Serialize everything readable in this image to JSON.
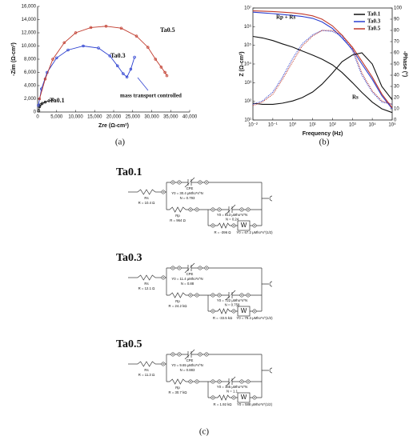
{
  "chart_data": [
    {
      "type": "line",
      "caption": "(a)",
      "xlabel": "Zre (Ω-cm²)",
      "ylabel": "-Zim (Ω-cm²)",
      "xlim": [
        0,
        40000
      ],
      "xticks": [
        0,
        {
          "value": 5000,
          "label": "5,000"
        },
        {
          "value": 10000,
          "label": "10,000"
        },
        {
          "value": 15000,
          "label": "15,000"
        },
        {
          "value": 20000,
          "label": "20,000"
        },
        {
          "value": 25000,
          "label": "25,000"
        },
        {
          "value": 30000,
          "label": "30,000"
        },
        {
          "value": 35000,
          "label": "35,000"
        },
        {
          "value": 40000,
          "label": "40,000"
        }
      ],
      "ylim": [
        0,
        16000
      ],
      "yticks": [
        0,
        {
          "value": 2000,
          "label": "2,000"
        },
        {
          "value": 4000,
          "label": "4,000"
        },
        {
          "value": 6000,
          "label": "6,000"
        },
        {
          "value": 8000,
          "label": "8,000"
        },
        {
          "value": 10000,
          "label": "10,000"
        },
        {
          "value": 12000,
          "label": "12,000"
        },
        {
          "value": 14000,
          "label": "14,000"
        },
        {
          "value": 16000,
          "label": "16,000"
        }
      ],
      "series": [
        {
          "name": "Ta0.1",
          "color": "#111111",
          "x": [
            300,
            500,
            800,
            1200,
            2000,
            3000,
            4000
          ],
          "values": [
            200,
            800,
            1100,
            1300,
            1500,
            1700,
            1900
          ]
        },
        {
          "name": "Ta0.3",
          "color": "#2b3fd0",
          "x": [
            200,
            1000,
            2500,
            5000,
            8000,
            12000,
            16000,
            19000,
            21000,
            22500,
            23500,
            24500,
            25500
          ],
          "values": [
            1000,
            3500,
            6000,
            8200,
            9400,
            10000,
            9700,
            8500,
            7000,
            5800,
            5300,
            6500,
            8300
          ]
        },
        {
          "name": "Ta0.5",
          "color": "#c0392b",
          "x": [
            500,
            2000,
            4000,
            7000,
            10000,
            14000,
            18000,
            22000,
            26000,
            29000,
            31000,
            32500,
            33500,
            34000
          ],
          "values": [
            2000,
            5000,
            8000,
            10500,
            12000,
            12800,
            13000,
            12700,
            11500,
            9800,
            8000,
            6800,
            6000,
            5500
          ]
        }
      ],
      "annotations": [
        "mass transport controlled"
      ]
    },
    {
      "type": "line",
      "caption": "(b)",
      "xlabel": "Frequency (Hz)",
      "ylabel": "Z (Ω-cm²)",
      "y2label": "-Phase (°)",
      "xscale": "log",
      "yscale": "log",
      "legend": "upper right",
      "xlim": [
        0.01,
        100000
      ],
      "xticks": [
        {
          "value": 0.01,
          "label": "10⁻²"
        },
        {
          "value": 0.1,
          "label": "10⁻¹"
        },
        {
          "value": 1,
          "label": "10⁰"
        },
        {
          "value": 10,
          "label": "10¹"
        },
        {
          "value": 100,
          "label": "10²"
        },
        {
          "value": 1000,
          "label": "10³"
        },
        {
          "value": 10000,
          "label": "10⁴"
        },
        {
          "value": 100000,
          "label": "10⁵"
        }
      ],
      "ylim": [
        10,
        10000000
      ],
      "yticks": [
        {
          "value": 10,
          "label": "10¹"
        },
        {
          "value": 100,
          "label": "10²"
        },
        {
          "value": 1000,
          "label": "10³"
        },
        {
          "value": 10000,
          "label": "10⁴"
        },
        {
          "value": 100000,
          "label": "10⁵"
        },
        {
          "value": 1000000,
          "label": "10⁶"
        },
        {
          "value": 10000000,
          "label": "10⁷"
        }
      ],
      "y2lim": [
        0,
        100
      ],
      "y2ticks": [
        0,
        10,
        20,
        30,
        40,
        50,
        60,
        70,
        80,
        90,
        100
      ],
      "x": [
        0.01,
        0.03,
        0.1,
        0.3,
        1,
        3,
        10,
        30,
        100,
        300,
        1000,
        3000,
        10000,
        30000,
        100000
      ],
      "series": [
        {
          "name": "Ta0.1",
          "color": "#111111",
          "values": [
            300000,
            250000,
            180000,
            120000,
            80000,
            50000,
            30000,
            18000,
            9000,
            3500,
            1000,
            300,
            90,
            40,
            25
          ]
        },
        {
          "name": "Ta0.3",
          "color": "#2b3fd0",
          "values": [
            6000000,
            5500000,
            5000000,
            4500000,
            4000000,
            3500000,
            2800000,
            1800000,
            800000,
            250000,
            60000,
            10000,
            1500,
            200,
            40
          ]
        },
        {
          "name": "Ta0.5",
          "color": "#c0392b",
          "values": [
            7000000,
            6800000,
            6500000,
            6000000,
            5500000,
            4800000,
            3800000,
            2500000,
            1100000,
            350000,
            80000,
            14000,
            2000,
            250,
            45
          ]
        },
        {
          "color": "#111111",
          "axis": "y2",
          "values": [
            15,
            14,
            14,
            15,
            17,
            20,
            25,
            32,
            42,
            52,
            58,
            60,
            50,
            30,
            18
          ]
        },
        {
          "color": "#2b3fd0",
          "axis": "y2",
          "dash": "dotted",
          "values": [
            14,
            17,
            25,
            38,
            55,
            68,
            76,
            80,
            79,
            75,
            62,
            40,
            25,
            16,
            14
          ]
        },
        {
          "color": "#c0392b",
          "axis": "y2",
          "dash": "dotted",
          "values": [
            13,
            16,
            23,
            36,
            52,
            66,
            75,
            80,
            80,
            76,
            64,
            42,
            26,
            17,
            14
          ]
        }
      ],
      "annotations": [
        "Rp + Rs",
        "Rs"
      ]
    }
  ],
  "caption": "(c)",
  "circuits": [
    {
      "title": "Ta0.1",
      "rs": {
        "name": "Rs",
        "value": "R = 10.4 Ω"
      },
      "cpe1": {
        "name": "CPE",
        "y0": "Y0 = 30.4 μMho*s^N",
        "n": "N = 0.793"
      },
      "rp": {
        "name": "Rp",
        "value": "R = 964 Ω"
      },
      "cpe2": {
        "y0": "Y0 = 513 μMho*s^N",
        "n": "N = 0.24"
      },
      "r": "R = -396 Ω",
      "w": {
        "name": "W",
        "y0": "Y0 = 67.2 μMho*s^(1/2)"
      }
    },
    {
      "title": "Ta0.3",
      "rs": {
        "name": "Rs",
        "value": "R = 12.1 Ω"
      },
      "cpe1": {
        "name": "CPE",
        "y0": "Y0 = 11.4 μMho*s^N",
        "n": "N = 0.88"
      },
      "rp": {
        "name": "Rp",
        "value": "R = 24.2 kΩ"
      },
      "cpe2": {
        "y0": "Y0 = 722 μMho*s^N",
        "n": "N = 0.758"
      },
      "r": "R = -33.5 kΩ",
      "w": {
        "name": "W",
        "y0": "Y0 = 79.4 μMho*s^(1/2)"
      }
    },
    {
      "title": "Ta0.5",
      "rs": {
        "name": "Rs",
        "value": "R = 11.3 Ω"
      },
      "cpe1": {
        "name": "CPE",
        "y0": "Y0 = 9.65 μMho*s^N",
        "n": "N = 0.883"
      },
      "rp": {
        "name": "Rp",
        "value": "R = 30.7 kΩ"
      },
      "cpe2": {
        "y0": "Y0 = 165 μMho*s^N",
        "n": "N = 1.1"
      },
      "r": "R = 1.92 kΩ",
      "w": {
        "name": "W",
        "y0": "Y0 = 588 μMho*s^(1/2)"
      }
    }
  ]
}
